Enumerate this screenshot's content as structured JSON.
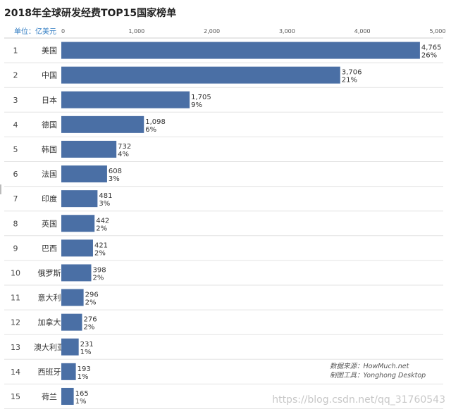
{
  "title": "2018年全球研发经费TOP15国家榜单",
  "unit_label": "单位：亿美元",
  "source": {
    "line1": "数据来源：HowMuch.net",
    "line2": "制图工具：Yonghong Desktop"
  },
  "watermark": "https://blog.csdn.net/qq_31760543",
  "chart_data": {
    "type": "bar",
    "orientation": "horizontal",
    "title": "2018年全球研发经费TOP15国家榜单",
    "unit": "单位：亿美元",
    "xlim": [
      0,
      5000
    ],
    "x_ticks": [
      "0",
      "1,000",
      "2,000",
      "3,000",
      "4,000",
      "5,000"
    ],
    "bar_color": "#4a6fa5",
    "grid": "row-separators",
    "rows": [
      {
        "rank": "1",
        "country": "美国",
        "value": 4765,
        "value_label": "4,765",
        "share": "26%"
      },
      {
        "rank": "2",
        "country": "中国",
        "value": 3706,
        "value_label": "3,706",
        "share": "21%"
      },
      {
        "rank": "3",
        "country": "日本",
        "value": 1705,
        "value_label": "1,705",
        "share": "9%"
      },
      {
        "rank": "4",
        "country": "德国",
        "value": 1098,
        "value_label": "1,098",
        "share": "6%"
      },
      {
        "rank": "5",
        "country": "韩国",
        "value": 732,
        "value_label": "732",
        "share": "4%"
      },
      {
        "rank": "6",
        "country": "法国",
        "value": 608,
        "value_label": "608",
        "share": "3%"
      },
      {
        "rank": "7",
        "country": "印度",
        "value": 481,
        "value_label": "481",
        "share": "3%"
      },
      {
        "rank": "8",
        "country": "英国",
        "value": 442,
        "value_label": "442",
        "share": "2%"
      },
      {
        "rank": "9",
        "country": "巴西",
        "value": 421,
        "value_label": "421",
        "share": "2%"
      },
      {
        "rank": "10",
        "country": "俄罗斯",
        "value": 398,
        "value_label": "398",
        "share": "2%"
      },
      {
        "rank": "11",
        "country": "意大利",
        "value": 296,
        "value_label": "296",
        "share": "2%"
      },
      {
        "rank": "12",
        "country": "加拿大",
        "value": 276,
        "value_label": "276",
        "share": "2%"
      },
      {
        "rank": "13",
        "country": "澳大利亚",
        "value": 231,
        "value_label": "231",
        "share": "1%"
      },
      {
        "rank": "14",
        "country": "西班牙",
        "value": 193,
        "value_label": "193",
        "share": "1%"
      },
      {
        "rank": "15",
        "country": "荷兰",
        "value": 165,
        "value_label": "165",
        "share": "1%"
      }
    ]
  }
}
